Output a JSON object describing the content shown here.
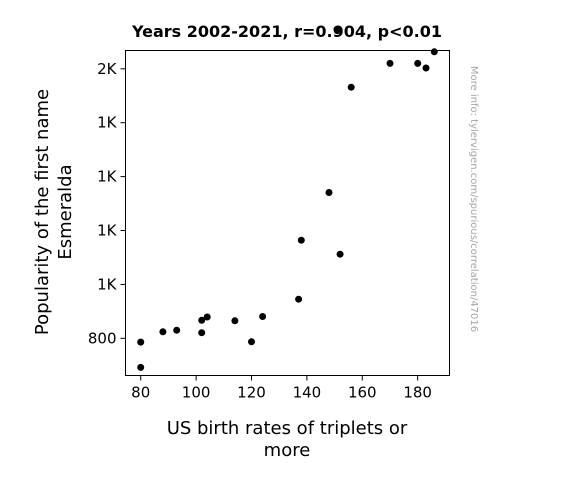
{
  "chart_data": {
    "type": "scatter",
    "title": "Years 2002-2021, r=0.904, p<0.01",
    "xlabel": [
      "US birth rates of triplets or",
      "more"
    ],
    "ylabel": [
      "Popularity of the first name",
      "Esmeralda"
    ],
    "side_note": "More info: tylervigen.com/spurious/correlation/47016",
    "xlim": [
      74.5,
      191.5
    ],
    "ylim": [
      662,
      1868
    ],
    "x_ticks": [
      {
        "value": 80,
        "label": "80"
      },
      {
        "value": 100,
        "label": "100"
      },
      {
        "value": 120,
        "label": "120"
      },
      {
        "value": 140,
        "label": "140"
      },
      {
        "value": 160,
        "label": "160"
      },
      {
        "value": 180,
        "label": "180"
      }
    ],
    "y_ticks": [
      {
        "value": 800,
        "label": "800"
      },
      {
        "value": 1000,
        "label": "1K"
      },
      {
        "value": 1200,
        "label": "1K"
      },
      {
        "value": 1400,
        "label": "1K"
      },
      {
        "value": 1600,
        "label": "1K"
      },
      {
        "value": 1800,
        "label": "2K"
      }
    ],
    "grid": false,
    "marker_color": "#000000",
    "points": [
      {
        "x": 80,
        "y": 786
      },
      {
        "x": 80,
        "y": 692
      },
      {
        "x": 88,
        "y": 824
      },
      {
        "x": 93,
        "y": 830
      },
      {
        "x": 102,
        "y": 867
      },
      {
        "x": 102,
        "y": 821
      },
      {
        "x": 104,
        "y": 879
      },
      {
        "x": 114,
        "y": 865
      },
      {
        "x": 120,
        "y": 787
      },
      {
        "x": 124,
        "y": 881
      },
      {
        "x": 137,
        "y": 945
      },
      {
        "x": 138,
        "y": 1164
      },
      {
        "x": 148,
        "y": 1341
      },
      {
        "x": 151,
        "y": 1942
      },
      {
        "x": 152,
        "y": 1112
      },
      {
        "x": 156,
        "y": 1732
      },
      {
        "x": 170,
        "y": 1820
      },
      {
        "x": 180,
        "y": 1820
      },
      {
        "x": 183,
        "y": 1803
      },
      {
        "x": 186,
        "y": 1863
      }
    ]
  }
}
